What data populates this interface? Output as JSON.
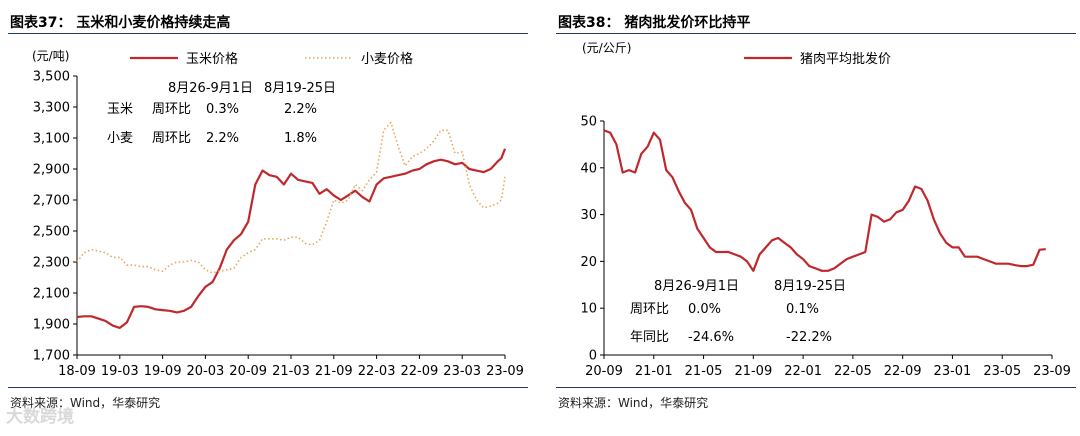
{
  "source_text": "资料来源：Wind，华泰研究",
  "watermark": "大数跨境",
  "colors": {
    "corn": "#c0282c",
    "wheat": "#e8a75a",
    "pork": "#c0282c",
    "rule": "#1f3a63"
  },
  "chart_data": [
    {
      "type": "line",
      "title": "图表37： 玉米和小麦价格持续走高",
      "unit": "(元/吨)",
      "ylim": [
        1700,
        3500
      ],
      "yticks": [
        "1,700",
        "1,900",
        "2,100",
        "2,300",
        "2,500",
        "2,700",
        "2,900",
        "3,100",
        "3,300",
        "3,500"
      ],
      "xlim": [
        0,
        60
      ],
      "xticks": [
        {
          "label": "18-09",
          "pos": 0
        },
        {
          "label": "19-03",
          "pos": 6
        },
        {
          "label": "19-09",
          "pos": 12
        },
        {
          "label": "20-03",
          "pos": 18
        },
        {
          "label": "20-09",
          "pos": 24
        },
        {
          "label": "21-03",
          "pos": 30
        },
        {
          "label": "21-09",
          "pos": 36
        },
        {
          "label": "22-03",
          "pos": 42
        },
        {
          "label": "22-09",
          "pos": 48
        },
        {
          "label": "23-03",
          "pos": 54
        },
        {
          "label": "23-09",
          "pos": 60
        }
      ],
      "legend": [
        "玉米价格",
        "小麦价格"
      ],
      "series": [
        {
          "name": "玉米价格",
          "style": "solid",
          "x": [
            0,
            1,
            2,
            3,
            4,
            5,
            6,
            7,
            8,
            9,
            10,
            11,
            12,
            13,
            14,
            15,
            16,
            17,
            18,
            19,
            20,
            21,
            22,
            23,
            24,
            25,
            26,
            27,
            28,
            29,
            30,
            31,
            32,
            33,
            34,
            35,
            36,
            37,
            38,
            39,
            40,
            41,
            42,
            43,
            44,
            45,
            46,
            47,
            48,
            49,
            50,
            51,
            52,
            53,
            54,
            55,
            56,
            57,
            58,
            59,
            59.5,
            60
          ],
          "y": [
            1945,
            1950,
            1950,
            1935,
            1920,
            1890,
            1875,
            1910,
            2010,
            2015,
            2010,
            1995,
            1990,
            1985,
            1975,
            1985,
            2010,
            2080,
            2140,
            2170,
            2260,
            2380,
            2440,
            2480,
            2560,
            2800,
            2890,
            2860,
            2850,
            2800,
            2870,
            2830,
            2820,
            2810,
            2740,
            2770,
            2730,
            2700,
            2730,
            2760,
            2720,
            2690,
            2800,
            2840,
            2850,
            2860,
            2870,
            2890,
            2900,
            2930,
            2950,
            2960,
            2950,
            2930,
            2940,
            2900,
            2890,
            2880,
            2900,
            2950,
            2970,
            3030
          ]
        },
        {
          "name": "小麦价格",
          "style": "dotted",
          "x": [
            0,
            1,
            2,
            3,
            4,
            5,
            6,
            7,
            8,
            9,
            10,
            11,
            12,
            13,
            14,
            15,
            16,
            17,
            18,
            19,
            20,
            21,
            22,
            23,
            24,
            25,
            26,
            27,
            28,
            29,
            30,
            31,
            32,
            33,
            34,
            35,
            36,
            37,
            38,
            39,
            40,
            41,
            42,
            43,
            44,
            45,
            46,
            47,
            48,
            49,
            50,
            51,
            52,
            53,
            54,
            55,
            56,
            57,
            58,
            59,
            59.5,
            60
          ],
          "y": [
            2300,
            2360,
            2380,
            2370,
            2360,
            2330,
            2330,
            2280,
            2280,
            2270,
            2270,
            2250,
            2240,
            2280,
            2300,
            2300,
            2310,
            2300,
            2250,
            2230,
            2240,
            2250,
            2260,
            2330,
            2360,
            2380,
            2450,
            2450,
            2450,
            2440,
            2460,
            2460,
            2420,
            2410,
            2440,
            2560,
            2700,
            2680,
            2700,
            2800,
            2760,
            2830,
            2880,
            3150,
            3200,
            3050,
            2920,
            2980,
            3000,
            3030,
            3080,
            3150,
            3150,
            3000,
            3010,
            2800,
            2700,
            2650,
            2660,
            2680,
            2700,
            2850
          ]
        }
      ],
      "annotations": {
        "headers": [
          "8月26-9月1日",
          "8月19-25日"
        ],
        "rows": [
          {
            "item": "玉米",
            "metric": "周环比",
            "v1": "0.3%",
            "v2": "2.2%"
          },
          {
            "item": "小麦",
            "metric": "周环比",
            "v1": "2.2%",
            "v2": "1.8%"
          }
        ]
      }
    },
    {
      "type": "line",
      "title": "图表38： 猪肉批发价环比持平",
      "unit": "(元/公斤)",
      "ylim": [
        0,
        50
      ],
      "yticks": [
        "0",
        "10",
        "20",
        "30",
        "40",
        "50"
      ],
      "xlim": [
        0,
        36
      ],
      "xticks": [
        {
          "label": "20-09",
          "pos": 0
        },
        {
          "label": "21-01",
          "pos": 4
        },
        {
          "label": "21-05",
          "pos": 8
        },
        {
          "label": "21-09",
          "pos": 12
        },
        {
          "label": "22-01",
          "pos": 16
        },
        {
          "label": "22-05",
          "pos": 20
        },
        {
          "label": "22-09",
          "pos": 24
        },
        {
          "label": "23-01",
          "pos": 28
        },
        {
          "label": "23-05",
          "pos": 32
        },
        {
          "label": "23-09",
          "pos": 36
        }
      ],
      "legend": [
        "猪肉平均批发价"
      ],
      "series": [
        {
          "name": "猪肉平均批发价",
          "style": "solid",
          "x": [
            0,
            0.5,
            1,
            1.5,
            2,
            2.5,
            3,
            3.5,
            4,
            4.5,
            5,
            5.5,
            6,
            6.5,
            7,
            7.5,
            8,
            8.5,
            9,
            9.5,
            10,
            10.5,
            11,
            11.5,
            12,
            12.5,
            13,
            13.5,
            14,
            14.5,
            15,
            15.5,
            16,
            16.5,
            17,
            17.5,
            18,
            18.5,
            19,
            19.5,
            20,
            20.5,
            21,
            21.5,
            22,
            22.5,
            23,
            23.5,
            24,
            24.5,
            25,
            25.5,
            26,
            26.5,
            27,
            27.5,
            28,
            28.5,
            29,
            29.5,
            30,
            30.5,
            31,
            31.5,
            32,
            32.5,
            33,
            33.5,
            34,
            34.5,
            35,
            35.5
          ],
          "y": [
            48,
            47.5,
            45,
            39,
            39.5,
            39,
            43,
            44.5,
            47.5,
            46,
            39.5,
            38,
            35,
            32.5,
            31,
            27,
            25,
            23,
            22,
            22,
            22,
            21.5,
            21,
            20,
            18,
            21.5,
            23,
            24.5,
            25,
            24,
            23,
            21.5,
            20.5,
            19,
            18.5,
            18,
            18,
            18.5,
            19.5,
            20.5,
            21,
            21.5,
            22,
            30,
            29.5,
            28.5,
            29,
            30.5,
            31,
            33,
            36,
            35.5,
            33,
            29,
            26,
            24,
            23,
            23,
            21,
            21,
            21,
            20.5,
            20,
            19.5,
            19.5,
            19.5,
            19.2,
            19,
            19,
            19.3,
            22.5,
            22.6
          ]
        }
      ],
      "annotations": {
        "headers": [
          "8月26-9月1日",
          "8月19-25日"
        ],
        "rows": [
          {
            "metric": "周环比",
            "v1": "0.0%",
            "v2": "0.1%"
          },
          {
            "metric": "年同比",
            "v1": "-24.6%",
            "v2": "-22.2%"
          }
        ]
      }
    }
  ]
}
